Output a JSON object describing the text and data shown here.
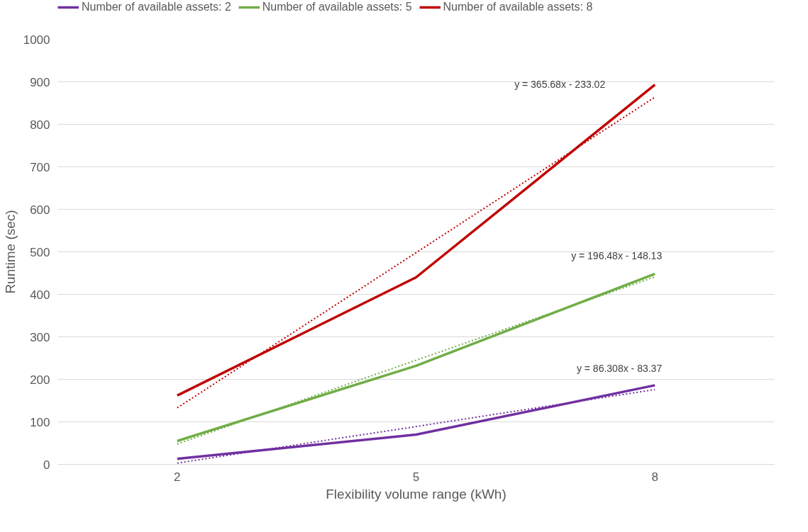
{
  "chart_data": {
    "type": "line",
    "xlabel": "Flexibility volume range (kWh)",
    "ylabel": "Runtime (sec)",
    "categories": [
      "2",
      "5",
      "8"
    ],
    "series": [
      {
        "name": "Number of available assets: 2",
        "color": "#7030a0",
        "values": [
          13,
          70,
          186
        ]
      },
      {
        "name": "Number of available assets: 5",
        "color": "#70ad47",
        "values": [
          55,
          232,
          448
        ]
      },
      {
        "name": "Number of available assets: 8",
        "color": "#c00000",
        "values": [
          162,
          440,
          893
        ]
      },
      {
        "type": "line",
        "line_style": "dotted",
        "color": "#7030a0",
        "values": [
          3,
          89,
          176
        ]
      },
      {
        "type": "line",
        "line_style": "dotted",
        "color": "#70ad47",
        "values": [
          48,
          245,
          441
        ]
      },
      {
        "type": "line",
        "line_style": "dotted",
        "color": "#c00000",
        "values": [
          133,
          498,
          864
        ]
      }
    ],
    "annotations": [
      "y = 86.308x - 83.37",
      "y = 196.48x - 148.13",
      "y = 365.68x - 233.02"
    ],
    "ylim": [
      0,
      1000
    ],
    "yticks": [
      0,
      100,
      200,
      300,
      400,
      500,
      600,
      700,
      800,
      900,
      1000
    ],
    "grid": "y",
    "legend": "top",
    "marker": "none",
    "line_style": "solid"
  }
}
